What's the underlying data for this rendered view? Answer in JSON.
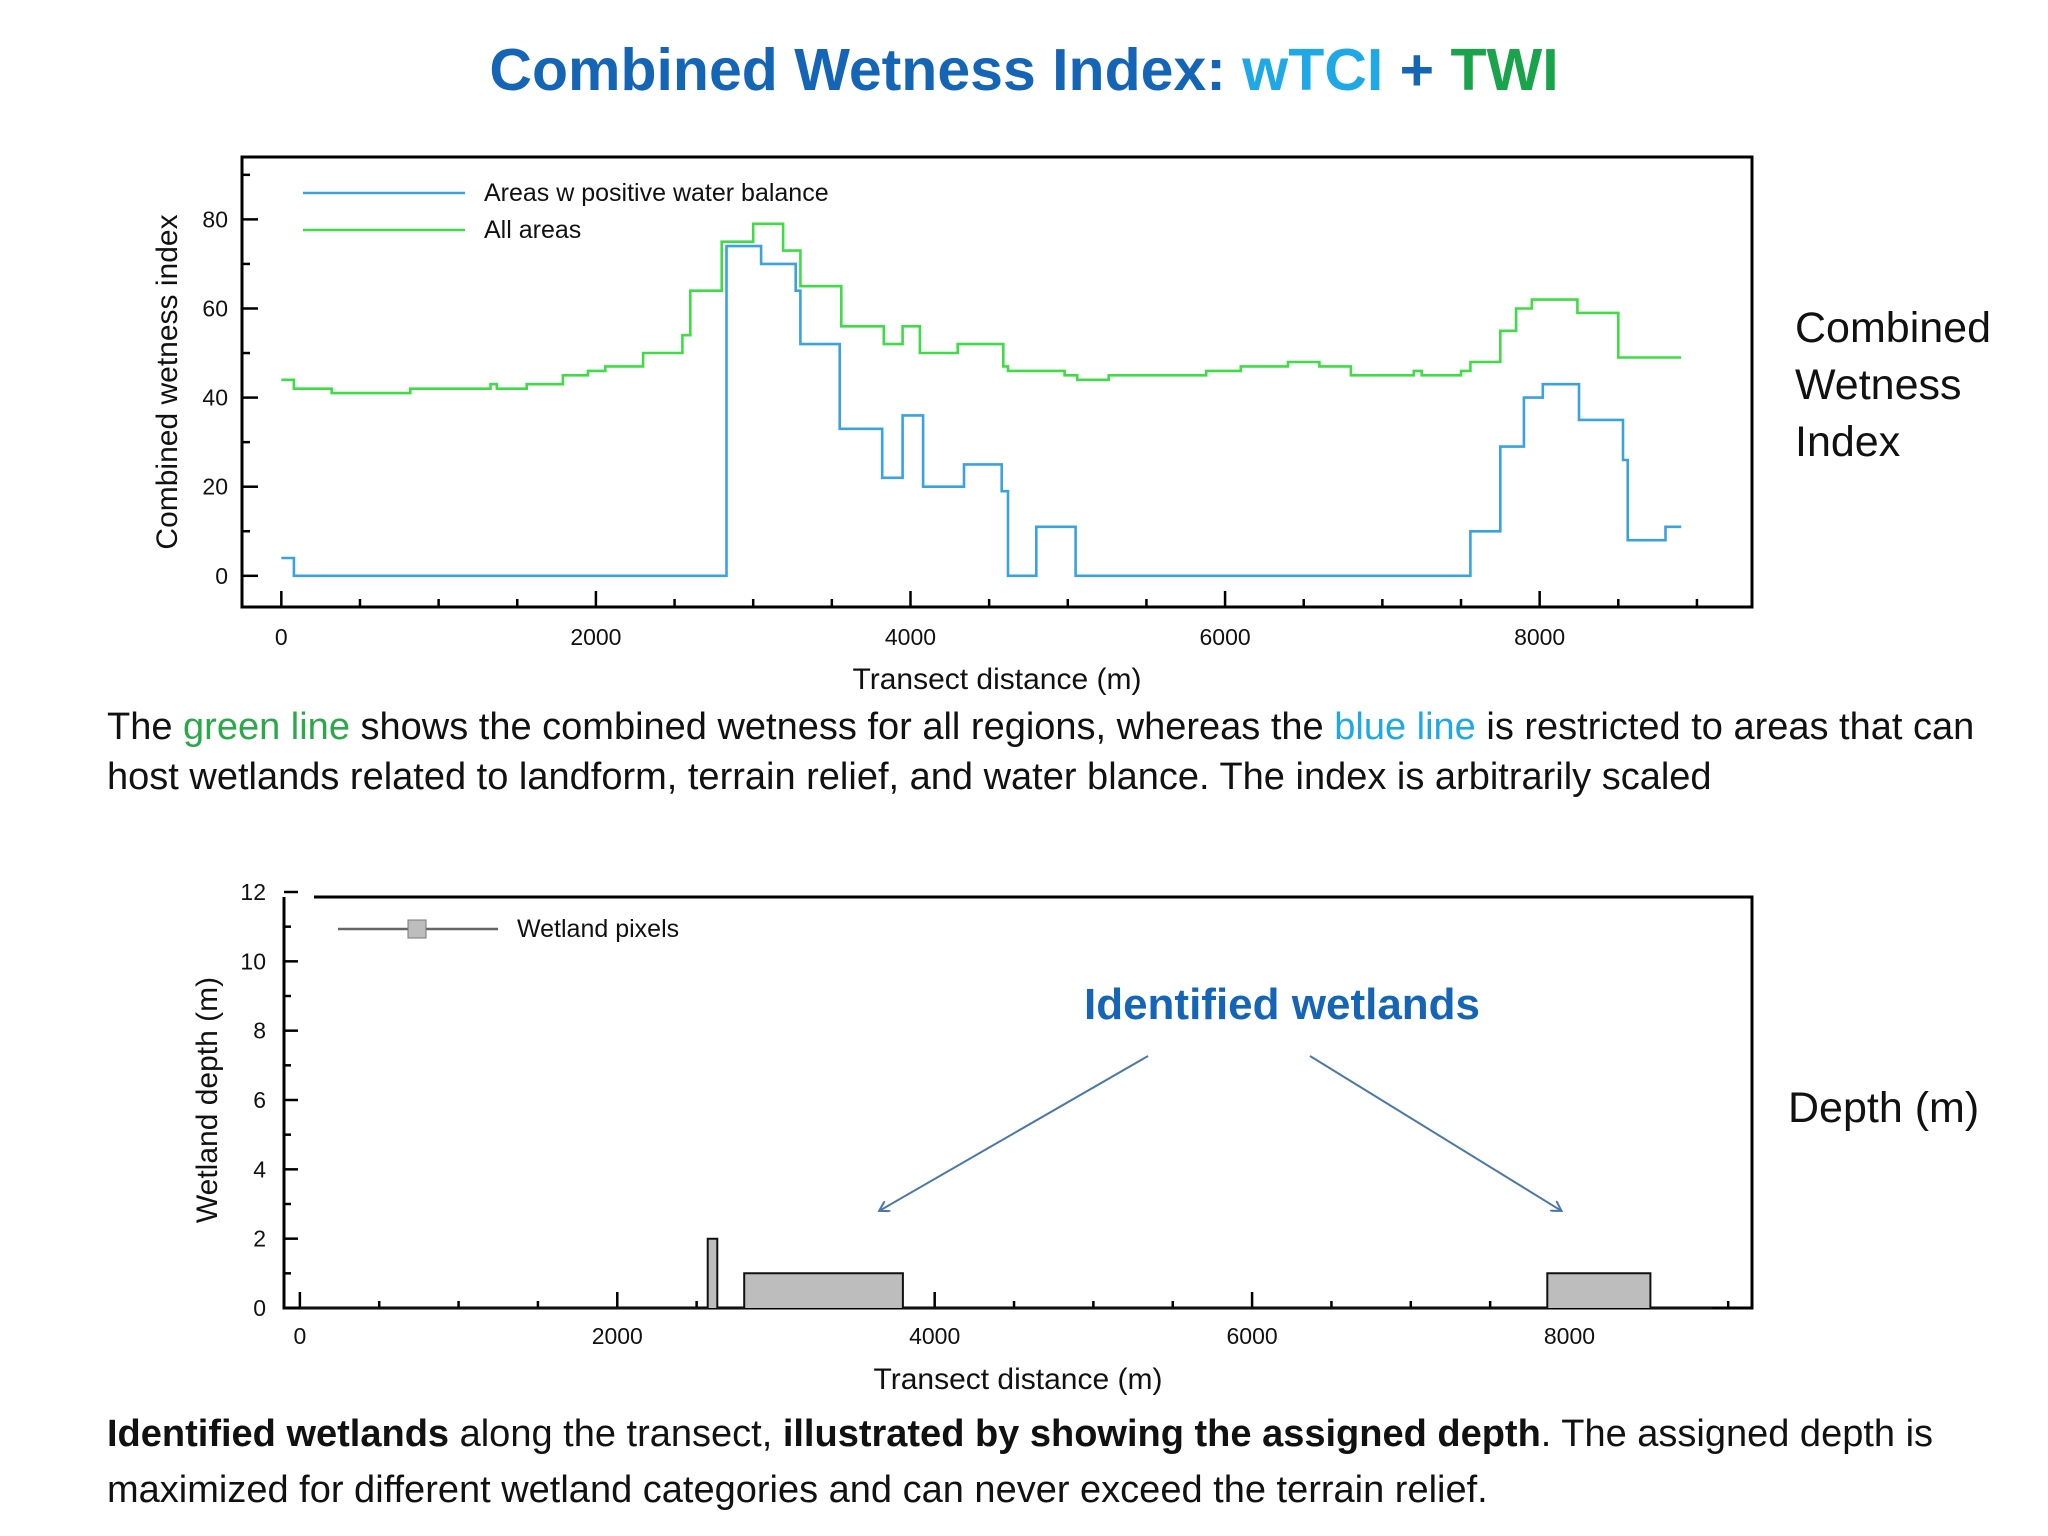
{
  "title": {
    "prefix": "Combined Wetness Index: ",
    "wtci": "wTCI",
    "plus": " + ",
    "twi": "TWI"
  },
  "colors": {
    "title": "#1565b6",
    "wtci": "#1ea9e6",
    "twi": "#19a34a",
    "blue_series": "#3aa2dc",
    "green_series": "#3fdc45",
    "wetland_fill": "#bdbdbd",
    "annotation": "#1565b6"
  },
  "side_labels": {
    "top": "Combined Wetness Index",
    "bottom": "Depth (m)"
  },
  "caption1": {
    "part1": "The ",
    "green": "green line",
    "part2": " shows the combined wetness for all regions, whereas the ",
    "blue": "blue line",
    "part3": " is restricted to areas that can host wetlands related to landform, terrain relief, and water blance. The index is arbitrarily scaled"
  },
  "caption2": {
    "bold1": "Identified wetlands",
    "part1": " along the transect, ",
    "bold2": "illustrated by showing the assigned depth",
    "part2": ". The assigned depth is maximized for different wetland categories and can never exceed the terrain relief."
  },
  "chart_data": [
    {
      "type": "line",
      "step": true,
      "xlabel": "Transect distance (m)",
      "ylabel": "Combined wetness index",
      "xlim": [
        -250,
        9350
      ],
      "ylim": [
        -7,
        94
      ],
      "xticks": [
        0,
        2000,
        4000,
        6000,
        8000
      ],
      "yticks": [
        0,
        20,
        40,
        60,
        80
      ],
      "legend_placement": "top-left",
      "series": [
        {
          "name": "Areas w positive water balance",
          "color": "#3aa2dc",
          "x": [
            0,
            80,
            2800,
            2830,
            3050,
            3270,
            3300,
            3550,
            3820,
            3950,
            4080,
            4340,
            4580,
            4620,
            4800,
            4830,
            5050,
            5060,
            7500,
            7560,
            7750,
            7830,
            7900,
            8020,
            8250,
            8500,
            8530,
            8560,
            8750,
            8800,
            8900
          ],
          "y": [
            4,
            0,
            0,
            74,
            70,
            64,
            52,
            33,
            22,
            36,
            20,
            25,
            19,
            0,
            11,
            11,
            0,
            0,
            0,
            10,
            29,
            29,
            40,
            43,
            35,
            35,
            26,
            8,
            8,
            11,
            11
          ]
        },
        {
          "name": "All areas",
          "color": "#3fdc45",
          "x": [
            0,
            80,
            320,
            820,
            1330,
            1370,
            1560,
            1790,
            1950,
            2060,
            2300,
            2550,
            2600,
            2800,
            2960,
            3000,
            3190,
            3300,
            3560,
            3830,
            3950,
            4060,
            4300,
            4590,
            4620,
            4980,
            5060,
            5260,
            5450,
            5780,
            5880,
            6100,
            6400,
            6600,
            6800,
            7200,
            7250,
            7500,
            7560,
            7750,
            7850,
            7950,
            8100,
            8240,
            8450,
            8500,
            8900
          ],
          "y": [
            44,
            42,
            41,
            42,
            43,
            42,
            43,
            45,
            46,
            47,
            50,
            54,
            64,
            75,
            75,
            79,
            73,
            65,
            56,
            52,
            56,
            50,
            52,
            47,
            46,
            45,
            44,
            45,
            45,
            45,
            46,
            47,
            48,
            47,
            45,
            46,
            45,
            46,
            48,
            55,
            60,
            62,
            62,
            59,
            59,
            49,
            49
          ]
        }
      ]
    },
    {
      "type": "area",
      "step": true,
      "xlabel": "Transect distance (m)",
      "ylabel": "Wetland depth (m)",
      "xlim": [
        -100,
        9150
      ],
      "ylim": [
        0,
        12
      ],
      "xticks": [
        0,
        2000,
        4000,
        6000,
        8000
      ],
      "yticks": [
        0,
        2,
        4,
        6,
        8,
        10,
        12
      ],
      "legend_placement": "top-left",
      "series": [
        {
          "name": "Wetland pixels",
          "color": "#bdbdbd",
          "x": [
            0,
            2570,
            2570,
            2630,
            2630,
            2800,
            2800,
            3800,
            3800,
            7860,
            7860,
            8510,
            8510,
            8900
          ],
          "y": [
            0,
            0,
            2,
            2,
            0,
            0,
            1,
            1,
            0,
            0,
            1,
            1,
            0,
            0
          ]
        }
      ],
      "annotation": {
        "text": "Identified wetlands",
        "targets_x": [
          3650,
          7950
        ],
        "target_y": 2.8
      }
    }
  ]
}
